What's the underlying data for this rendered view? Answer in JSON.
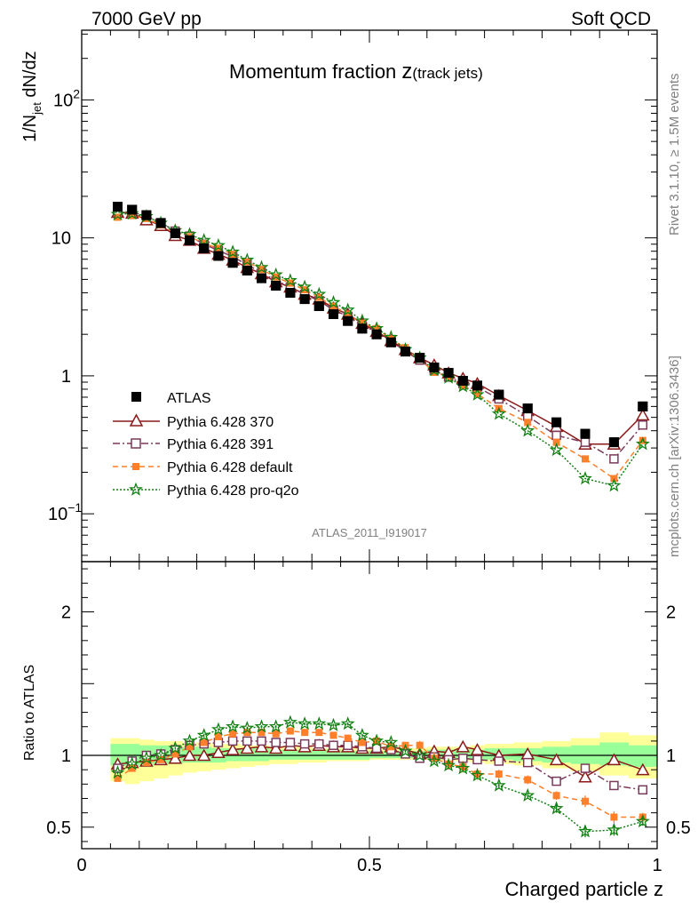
{
  "header": {
    "left": "7000 GeV pp",
    "right": "Soft QCD"
  },
  "title_main": "Momentum fraction ",
  "title_z": "z",
  "title_sub": "(track jets)",
  "side_labels": {
    "rivet": "Rivet 3.1.10, ≥ 1.5M events",
    "mcplots": "mcplots.cern.ch [arXiv:1306.3436]"
  },
  "analysis_label": "ATLAS_2011_I919017",
  "chart_data": [
    {
      "type": "line",
      "panel": "main",
      "yscale": "log",
      "ylabel": "1/N_jet dN/dz",
      "xlim": [
        0,
        1
      ],
      "ylim": [
        0.045,
        320
      ],
      "yticks": [
        {
          "value": 0.1,
          "label": "10",
          "sup": "−1"
        },
        {
          "value": 1,
          "label": "1",
          "sup": ""
        },
        {
          "value": 10,
          "label": "10",
          "sup": ""
        },
        {
          "value": 100,
          "label": "10",
          "sup": "2"
        }
      ],
      "x": [
        0.0625,
        0.0875,
        0.1125,
        0.1375,
        0.1625,
        0.1875,
        0.2125,
        0.2375,
        0.2625,
        0.2875,
        0.3125,
        0.3375,
        0.3625,
        0.3875,
        0.4125,
        0.4375,
        0.4625,
        0.4875,
        0.5125,
        0.5375,
        0.5625,
        0.5875,
        0.6125,
        0.6375,
        0.6625,
        0.6875,
        0.725,
        0.775,
        0.825,
        0.875,
        0.925,
        0.975
      ],
      "series": [
        {
          "name": "ATLAS",
          "marker": "square",
          "color": "#000000",
          "values": [
            16.8,
            16.0,
            14.6,
            12.8,
            10.8,
            9.6,
            8.4,
            7.4,
            6.6,
            5.8,
            5.1,
            4.5,
            4.0,
            3.6,
            3.2,
            2.8,
            2.5,
            2.2,
            2.0,
            1.75,
            1.5,
            1.35,
            1.15,
            1.05,
            0.92,
            0.85,
            0.73,
            0.58,
            0.46,
            0.38,
            0.33,
            0.6
          ]
        },
        {
          "name": "Pythia 6.428 370",
          "marker": "triangle",
          "color": "#8b1a1a",
          "values": [
            15.3,
            15.1,
            13.5,
            12.3,
            10.4,
            9.6,
            8.4,
            7.6,
            6.9,
            6.1,
            5.5,
            4.8,
            4.4,
            3.9,
            3.6,
            3.1,
            2.8,
            2.4,
            2.1,
            1.8,
            1.55,
            1.35,
            1.2,
            1.05,
            0.96,
            0.88,
            0.72,
            0.56,
            0.43,
            0.32,
            0.32,
            0.52
          ]
        },
        {
          "name": "Pythia 6.428 391",
          "marker": "open-square",
          "color": "#7a3a5a",
          "values": [
            15.3,
            15.3,
            14.5,
            12.9,
            11.2,
            10.3,
            9.0,
            8.1,
            7.3,
            6.4,
            5.6,
            4.9,
            4.4,
            3.9,
            3.5,
            3.0,
            2.7,
            2.3,
            2.1,
            1.8,
            1.5,
            1.3,
            1.1,
            0.98,
            0.88,
            0.83,
            0.68,
            0.51,
            0.37,
            0.33,
            0.25,
            0.44
          ]
        },
        {
          "name": "Pythia 6.428 default",
          "marker": "filled-square",
          "color": "#ff7f2a",
          "values": [
            14.1,
            14.5,
            13.8,
            12.4,
            10.9,
            10.2,
            9.1,
            8.4,
            7.6,
            6.7,
            5.9,
            5.2,
            4.7,
            4.2,
            3.7,
            3.2,
            2.8,
            2.4,
            2.2,
            1.85,
            1.6,
            1.32,
            1.06,
            0.99,
            0.85,
            0.74,
            0.58,
            0.46,
            0.33,
            0.25,
            0.18,
            0.34
          ]
        },
        {
          "name": "Pythia 6.428 pro-q2o",
          "marker": "star",
          "color": "#108010",
          "values": [
            14.8,
            15.0,
            14.3,
            12.8,
            11.3,
            10.6,
            9.6,
            8.8,
            7.9,
            6.9,
            6.1,
            5.4,
            4.9,
            4.4,
            3.9,
            3.4,
            3.0,
            2.5,
            2.2,
            1.9,
            1.55,
            1.35,
            1.1,
            0.97,
            0.84,
            0.73,
            0.53,
            0.4,
            0.29,
            0.18,
            0.16,
            0.32
          ]
        }
      ]
    },
    {
      "type": "line",
      "panel": "ratio",
      "ylabel": "Ratio to ATLAS",
      "xlabel": "Charged particle z",
      "xlim": [
        0,
        1
      ],
      "ylim": [
        0.35,
        2.35
      ],
      "yticks": [
        0.5,
        1,
        2
      ],
      "xticks": [
        {
          "value": 0,
          "label": "0"
        },
        {
          "value": 0.5,
          "label": "0.5"
        },
        {
          "value": 1,
          "label": "1"
        }
      ],
      "x": [
        0.0625,
        0.0875,
        0.1125,
        0.1375,
        0.1625,
        0.1875,
        0.2125,
        0.2375,
        0.2625,
        0.2875,
        0.3125,
        0.3375,
        0.3625,
        0.3875,
        0.4125,
        0.4375,
        0.4625,
        0.4875,
        0.5125,
        0.5375,
        0.5625,
        0.5875,
        0.6125,
        0.6375,
        0.6625,
        0.6875,
        0.725,
        0.775,
        0.825,
        0.875,
        0.925,
        0.975
      ],
      "band_edges": [
        0.05,
        0.075,
        0.1,
        0.125,
        0.15,
        0.175,
        0.2,
        0.225,
        0.25,
        0.275,
        0.3,
        0.325,
        0.35,
        0.375,
        0.4,
        0.425,
        0.45,
        0.475,
        0.5,
        0.525,
        0.55,
        0.575,
        0.6,
        0.625,
        0.65,
        0.675,
        0.7,
        0.75,
        0.8,
        0.85,
        0.9,
        0.95,
        1.0
      ],
      "band_total": [
        [
          0.82,
          1.12
        ],
        [
          0.8,
          1.12
        ],
        [
          0.82,
          1.11
        ],
        [
          0.84,
          1.1
        ],
        [
          0.86,
          1.1
        ],
        [
          0.88,
          1.09
        ],
        [
          0.89,
          1.09
        ],
        [
          0.9,
          1.08
        ],
        [
          0.91,
          1.08
        ],
        [
          0.92,
          1.07
        ],
        [
          0.93,
          1.07
        ],
        [
          0.94,
          1.06
        ],
        [
          0.94,
          1.06
        ],
        [
          0.95,
          1.06
        ],
        [
          0.95,
          1.05
        ],
        [
          0.96,
          1.05
        ],
        [
          0.96,
          1.05
        ],
        [
          0.96,
          1.05
        ],
        [
          0.97,
          1.05
        ],
        [
          0.97,
          1.05
        ],
        [
          0.97,
          1.05
        ],
        [
          0.97,
          1.05
        ],
        [
          0.97,
          1.06
        ],
        [
          0.96,
          1.06
        ],
        [
          0.96,
          1.06
        ],
        [
          0.95,
          1.07
        ],
        [
          0.94,
          1.08
        ],
        [
          0.93,
          1.09
        ],
        [
          0.91,
          1.1
        ],
        [
          0.89,
          1.12
        ],
        [
          0.86,
          1.16
        ],
        [
          0.84,
          1.14
        ]
      ],
      "band_stat": [
        [
          0.93,
          1.08
        ],
        [
          0.92,
          1.08
        ],
        [
          0.93,
          1.07
        ],
        [
          0.94,
          1.07
        ],
        [
          0.94,
          1.06
        ],
        [
          0.95,
          1.06
        ],
        [
          0.95,
          1.06
        ],
        [
          0.95,
          1.05
        ],
        [
          0.96,
          1.05
        ],
        [
          0.96,
          1.05
        ],
        [
          0.96,
          1.05
        ],
        [
          0.97,
          1.04
        ],
        [
          0.97,
          1.04
        ],
        [
          0.97,
          1.04
        ],
        [
          0.97,
          1.04
        ],
        [
          0.97,
          1.04
        ],
        [
          0.97,
          1.03
        ],
        [
          0.97,
          1.03
        ],
        [
          0.98,
          1.03
        ],
        [
          0.98,
          1.03
        ],
        [
          0.98,
          1.03
        ],
        [
          0.98,
          1.03
        ],
        [
          0.98,
          1.04
        ],
        [
          0.98,
          1.04
        ],
        [
          0.97,
          1.04
        ],
        [
          0.97,
          1.04
        ],
        [
          0.97,
          1.05
        ],
        [
          0.96,
          1.05
        ],
        [
          0.95,
          1.06
        ],
        [
          0.94,
          1.07
        ],
        [
          0.93,
          1.09
        ],
        [
          0.92,
          1.07
        ]
      ],
      "series": [
        {
          "name": "Pythia 6.428 370",
          "marker": "triangle",
          "color": "#8b1a1a",
          "values": [
            0.94,
            0.95,
            0.96,
            0.97,
            0.98,
            1.0,
            1.0,
            1.02,
            1.04,
            1.05,
            1.06,
            1.05,
            1.07,
            1.06,
            1.07,
            1.06,
            1.06,
            1.05,
            1.05,
            1.06,
            1.04,
            1.01,
            1.03,
            1.02,
            1.06,
            1.04,
            1.0,
            1.01,
            0.97,
            0.85,
            0.97,
            0.9
          ],
          "err": [
            0.01,
            0.01,
            0.01,
            0.01,
            0.01,
            0.01,
            0.01,
            0.01,
            0.01,
            0.01,
            0.01,
            0.01,
            0.01,
            0.01,
            0.01,
            0.01,
            0.01,
            0.01,
            0.01,
            0.01,
            0.01,
            0.01,
            0.02,
            0.02,
            0.02,
            0.02,
            0.02,
            0.02,
            0.02,
            0.03,
            0.03,
            0.02
          ]
        },
        {
          "name": "Pythia 6.428 391",
          "marker": "open-square",
          "color": "#7a3a5a",
          "values": [
            0.91,
            0.96,
            1.0,
            1.01,
            1.04,
            1.07,
            1.08,
            1.09,
            1.1,
            1.1,
            1.1,
            1.09,
            1.09,
            1.08,
            1.08,
            1.07,
            1.07,
            1.06,
            1.05,
            1.04,
            1.01,
            0.98,
            0.99,
            0.97,
            0.98,
            0.97,
            0.96,
            0.95,
            0.82,
            0.91,
            0.79,
            0.76
          ],
          "err": [
            0.01,
            0.01,
            0.01,
            0.01,
            0.01,
            0.01,
            0.01,
            0.01,
            0.01,
            0.01,
            0.01,
            0.01,
            0.01,
            0.01,
            0.01,
            0.01,
            0.01,
            0.01,
            0.01,
            0.01,
            0.01,
            0.01,
            0.02,
            0.02,
            0.02,
            0.02,
            0.02,
            0.02,
            0.03,
            0.03,
            0.03,
            0.02
          ]
        },
        {
          "name": "Pythia 6.428 default",
          "marker": "filled-square",
          "color": "#ff7f2a",
          "values": [
            0.84,
            0.91,
            0.95,
            0.97,
            1.01,
            1.06,
            1.09,
            1.13,
            1.15,
            1.16,
            1.16,
            1.15,
            1.17,
            1.16,
            1.16,
            1.14,
            1.12,
            1.09,
            1.1,
            1.06,
            1.07,
            1.07,
            0.98,
            0.94,
            0.92,
            0.87,
            0.87,
            0.83,
            0.72,
            0.68,
            0.57,
            0.57
          ],
          "err": [
            0.01,
            0.01,
            0.01,
            0.01,
            0.01,
            0.01,
            0.01,
            0.01,
            0.01,
            0.01,
            0.01,
            0.01,
            0.01,
            0.01,
            0.01,
            0.01,
            0.01,
            0.01,
            0.01,
            0.01,
            0.02,
            0.03,
            0.04,
            0.04,
            0.04,
            0.04,
            0.03,
            0.03,
            0.03,
            0.04,
            0.04,
            0.03
          ]
        },
        {
          "name": "Pythia 6.428 pro-q2o",
          "marker": "star",
          "color": "#108010",
          "values": [
            0.88,
            0.94,
            0.98,
            1.0,
            1.05,
            1.1,
            1.14,
            1.18,
            1.2,
            1.19,
            1.2,
            1.2,
            1.23,
            1.22,
            1.22,
            1.21,
            1.22,
            1.14,
            1.1,
            1.09,
            1.03,
            1.0,
            0.96,
            0.93,
            0.91,
            0.86,
            0.79,
            0.72,
            0.63,
            0.47,
            0.48,
            0.54
          ],
          "err": [
            0.01,
            0.01,
            0.01,
            0.01,
            0.01,
            0.01,
            0.01,
            0.01,
            0.01,
            0.01,
            0.01,
            0.01,
            0.01,
            0.01,
            0.01,
            0.01,
            0.01,
            0.01,
            0.01,
            0.01,
            0.01,
            0.01,
            0.02,
            0.02,
            0.02,
            0.02,
            0.02,
            0.02,
            0.03,
            0.04,
            0.04,
            0.03
          ]
        }
      ]
    }
  ]
}
